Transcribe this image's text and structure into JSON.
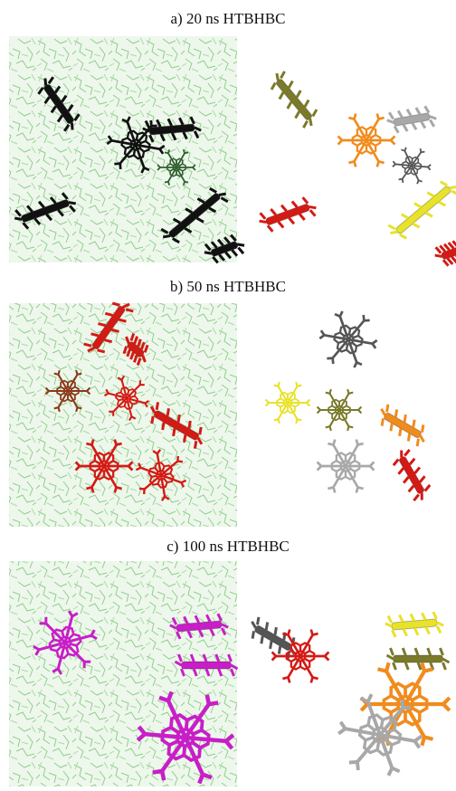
{
  "panels": [
    {
      "caption": "a) 20 ns HTBHBC"
    },
    {
      "caption": "b) 50 ns HTBHBC"
    },
    {
      "caption": "c) 100 ns HTBHBC"
    }
  ]
}
